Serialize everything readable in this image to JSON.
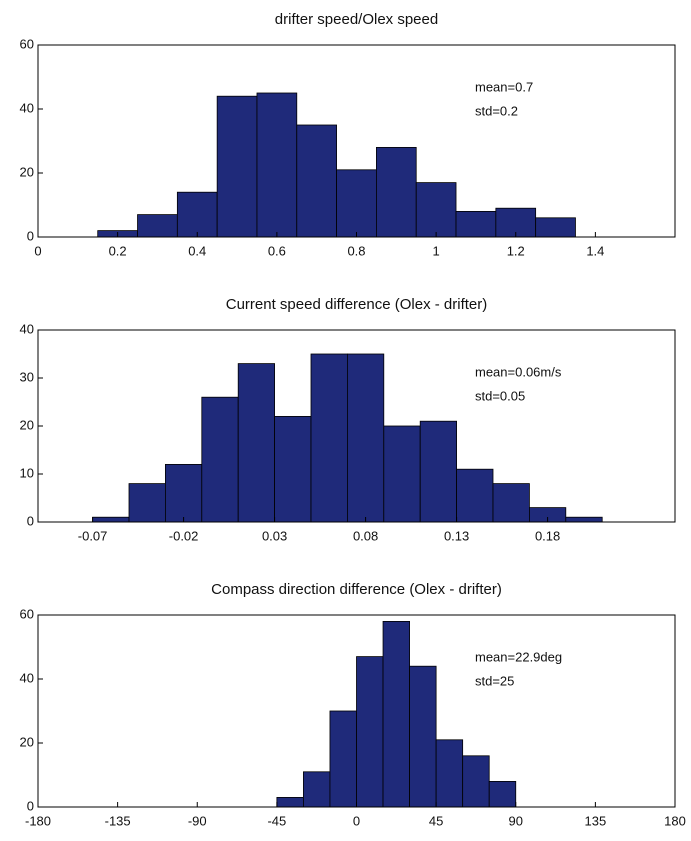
{
  "chart_data": [
    {
      "type": "histogram",
      "title": "drifter speed/Olex speed",
      "bins": [
        0.15,
        0.25,
        0.35,
        0.45,
        0.55,
        0.65,
        0.75,
        0.85,
        0.95,
        1.05,
        1.15,
        1.25,
        1.35
      ],
      "values": [
        2,
        7,
        14,
        44,
        45,
        35,
        21,
        28,
        17,
        8,
        9,
        6
      ],
      "color": "#1f2a7a",
      "xlim": [
        0,
        1.6
      ],
      "xticks": [
        0,
        0.2,
        0.4,
        0.6,
        0.8,
        1,
        1.2,
        1.4
      ],
      "ylim": [
        0,
        60
      ],
      "yticks": [
        0,
        20,
        40,
        60
      ],
      "annotations": [
        "mean=0.7",
        "std=0.2"
      ]
    },
    {
      "type": "histogram",
      "title": "Current speed difference (Olex - drifter)",
      "bins": [
        -0.07,
        -0.05,
        -0.03,
        -0.01,
        0.01,
        0.03,
        0.05,
        0.07,
        0.09,
        0.11,
        0.13,
        0.15,
        0.17,
        0.19,
        0.21
      ],
      "values": [
        1,
        8,
        12,
        26,
        33,
        22,
        35,
        35,
        20,
        21,
        11,
        8,
        3,
        1
      ],
      "color": "#1f2a7a",
      "xlim": [
        -0.1,
        0.25
      ],
      "xticks": [
        -0.07,
        -0.02,
        0.03,
        0.08,
        0.13,
        0.18
      ],
      "ylim": [
        0,
        40
      ],
      "yticks": [
        0,
        10,
        20,
        30,
        40
      ],
      "annotations": [
        "mean=0.06m/s",
        "std=0.05"
      ]
    },
    {
      "type": "histogram",
      "title": "Compass direction difference (Olex - drifter)",
      "bins": [
        -45,
        -30,
        -15,
        0,
        15,
        30,
        45,
        60,
        75,
        90
      ],
      "values": [
        3,
        11,
        30,
        47,
        58,
        44,
        21,
        16,
        8
      ],
      "color": "#1f2a7a",
      "xlim": [
        -180,
        180
      ],
      "xticks": [
        -180,
        -135,
        -90,
        -45,
        0,
        45,
        90,
        135,
        180
      ],
      "ylim": [
        0,
        60
      ],
      "yticks": [
        0,
        20,
        40,
        60
      ],
      "annotations": [
        "mean=22.9deg",
        "std=25"
      ]
    }
  ]
}
